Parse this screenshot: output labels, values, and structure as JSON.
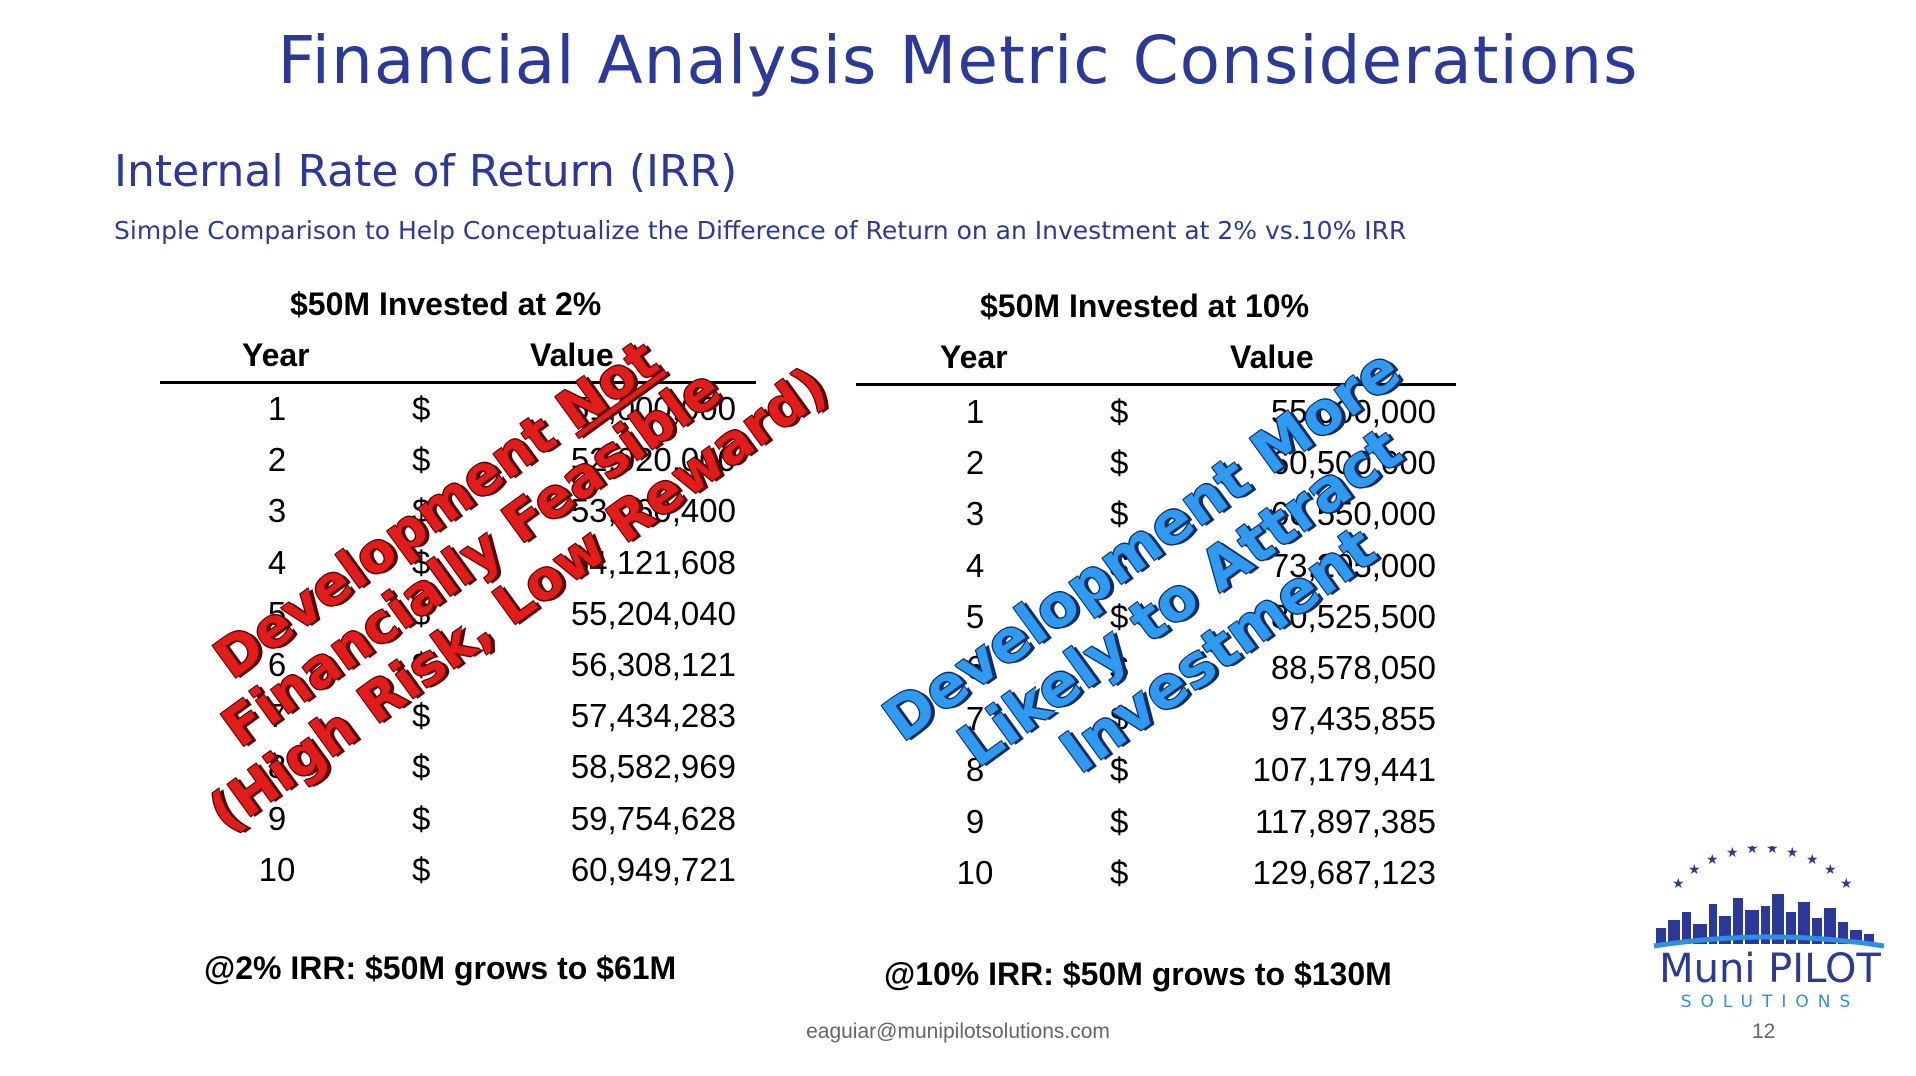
{
  "slide": {
    "title": "Financial Analysis Metric Considerations",
    "subtitle": "Internal Rate of Return (IRR)",
    "caption": "Simple Comparison to Help Conceptualize the Difference of Return on an Investment at 2% vs.10% IRR"
  },
  "table_2pct": {
    "title": "$50M Invested at 2%",
    "col_year": "Year",
    "col_value": "Value",
    "currency": "$",
    "rows": [
      {
        "year": "1",
        "value": "51,000,000"
      },
      {
        "year": "2",
        "value": "52,020,000"
      },
      {
        "year": "3",
        "value": "53,060,400"
      },
      {
        "year": "4",
        "value": "54,121,608"
      },
      {
        "year": "5",
        "value": "55,204,040"
      },
      {
        "year": "6",
        "value": "56,308,121"
      },
      {
        "year": "7",
        "value": "57,434,283"
      },
      {
        "year": "8",
        "value": "58,582,969"
      },
      {
        "year": "9",
        "value": "59,754,628"
      },
      {
        "year": "10",
        "value": "60,949,721"
      }
    ],
    "summary": "@2% IRR: $50M grows to $61M"
  },
  "table_10pct": {
    "title": "$50M Invested at 10%",
    "col_year": "Year",
    "col_value": "Value",
    "currency": "$",
    "rows": [
      {
        "year": "1",
        "value": "55,000,000"
      },
      {
        "year": "2",
        "value": "60,500,000"
      },
      {
        "year": "3",
        "value": "66,550,000"
      },
      {
        "year": "4",
        "value": "73,205,000"
      },
      {
        "year": "5",
        "value": "80,525,500"
      },
      {
        "year": "6",
        "value": "88,578,050"
      },
      {
        "year": "7",
        "value": "97,435,855"
      },
      {
        "year": "8",
        "value": "107,179,441"
      },
      {
        "year": "9",
        "value": "117,897,385"
      },
      {
        "year": "10",
        "value": "129,687,123"
      }
    ],
    "summary": "@10% IRR: $50M grows to $130M"
  },
  "stamps": {
    "red_line1_a": "Development ",
    "red_line1_b": "Not",
    "red_line2": "Financially Feasible",
    "red_line3": "(High Risk, Low Reward)",
    "blue_line1": "Development More",
    "blue_line2": "Likely to Attract",
    "blue_line3": "Investment",
    "red_color": "#e21b1b",
    "blue_color": "#2f9bf0"
  },
  "footer": {
    "email": "eaguiar@munipilotsolutions.com",
    "page": "12"
  },
  "logo": {
    "name": "Muni PILOT",
    "tagline": "SOLUTIONS",
    "icon": "city-skyline-icon"
  }
}
